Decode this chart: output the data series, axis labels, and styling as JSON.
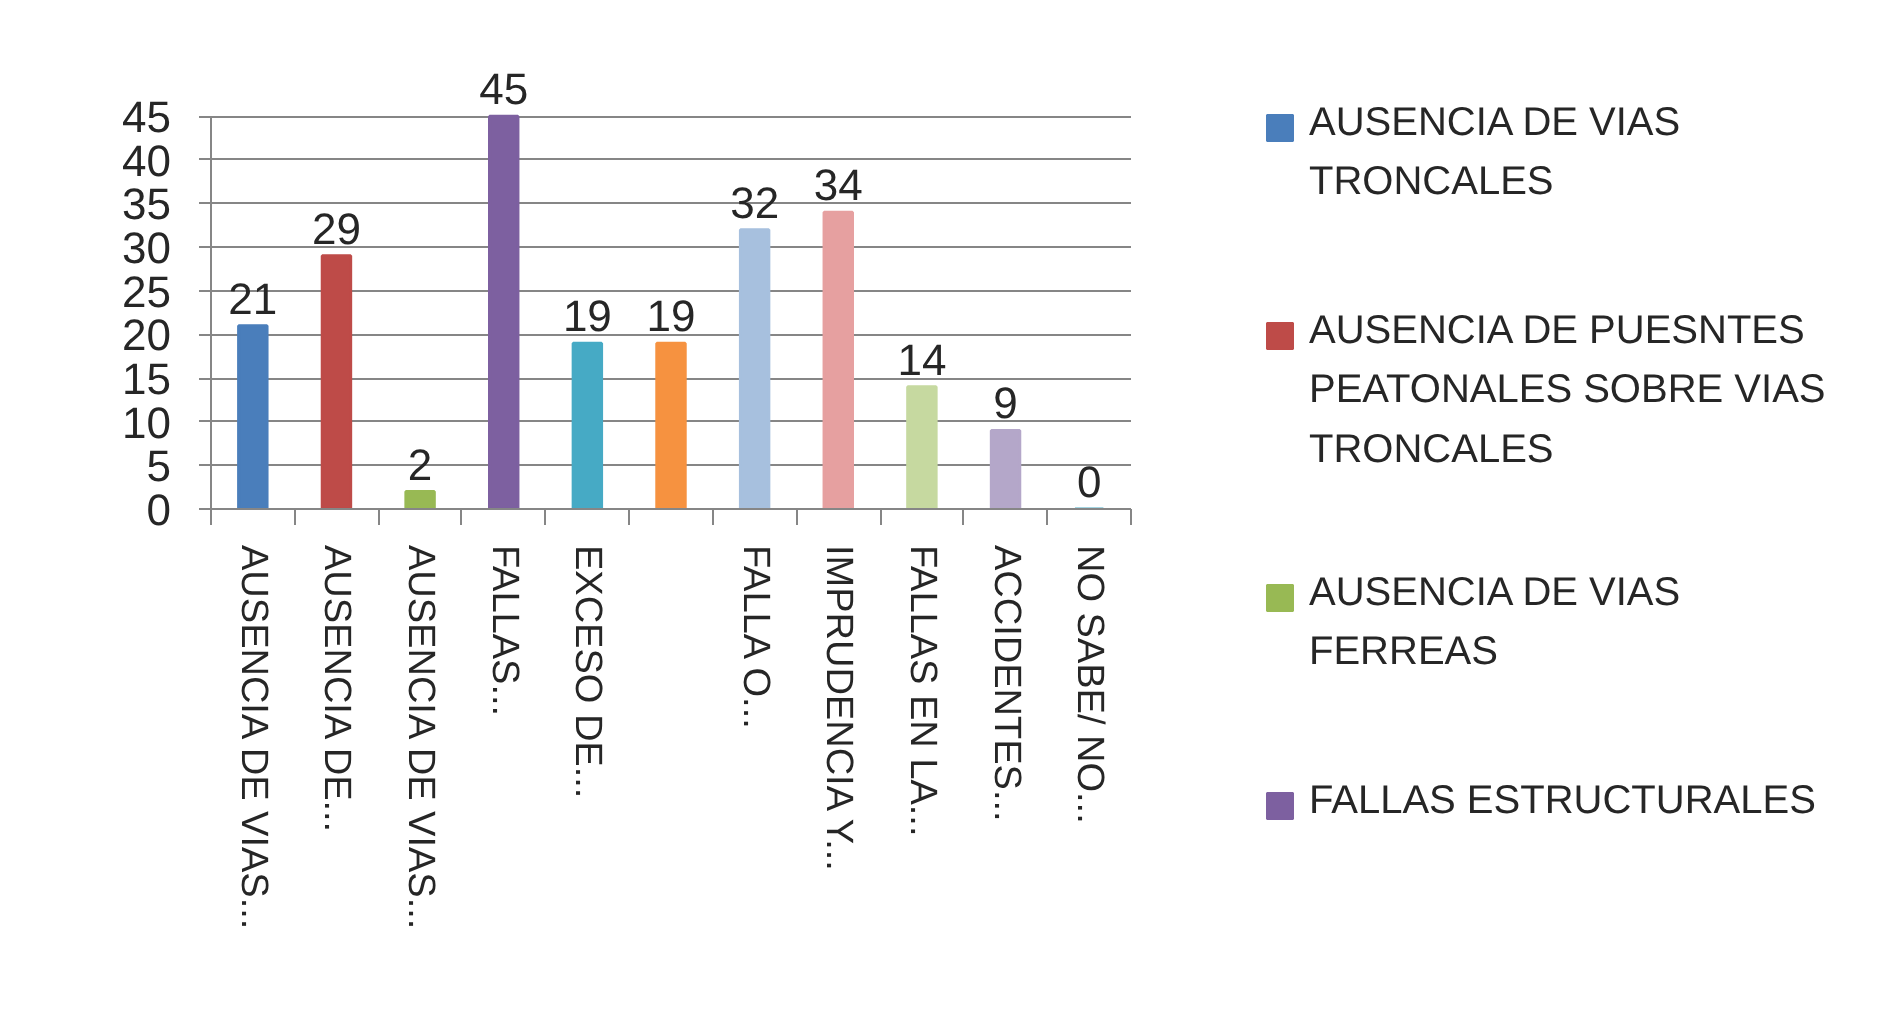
{
  "chart_data": {
    "type": "bar",
    "categories": [
      "AUSENCIA DE VIAS...",
      "AUSENCIA DE...",
      "AUSENCIA DE VIAS...",
      "FALLAS...",
      "EXCESO DE...",
      null,
      "FALLA O...",
      "IMPRUDENCIA Y...",
      "FALLAS EN LA...",
      "ACCIDENTES...",
      "NO SABE/ NO..."
    ],
    "series": [
      {
        "name": "AUSENCIA DE VIAS TRONCALES",
        "color": "#4a7ebb",
        "values": [
          21,
          null,
          null,
          null,
          null,
          null,
          null,
          null,
          null,
          null,
          null
        ]
      },
      {
        "name": "AUSENCIA DE PUESNTES PEATONALES SOBRE VIAS TRONCALES",
        "color": "#be4b48",
        "values": [
          null,
          29,
          null,
          null,
          null,
          null,
          null,
          null,
          null,
          null,
          null
        ]
      },
      {
        "name": "AUSENCIA DE VIAS FERREAS",
        "color": "#98b954",
        "values": [
          null,
          null,
          2,
          null,
          null,
          null,
          null,
          null,
          null,
          null,
          null
        ]
      },
      {
        "name": "FALLAS ESTRUCTURALES",
        "color": "#7d60a0",
        "values": [
          null,
          null,
          null,
          45,
          null,
          null,
          null,
          null,
          null,
          null,
          null
        ]
      },
      {
        "colors": [
          null,
          null,
          null,
          null,
          "#46aac5",
          "#f69240",
          "#a7c0de",
          "#e6a0a0",
          "#c6d9a0",
          "#b4a7c9",
          "#4bacc6"
        ],
        "values": [
          null,
          null,
          null,
          null,
          19,
          19,
          32,
          34,
          14,
          9,
          0
        ]
      }
    ],
    "stacked": true,
    "ylim": [
      0,
      45
    ],
    "yticks": [
      0,
      5,
      10,
      15,
      20,
      25,
      30,
      35,
      40,
      45
    ],
    "grid": "y",
    "legend": "right",
    "data_labels": true
  }
}
